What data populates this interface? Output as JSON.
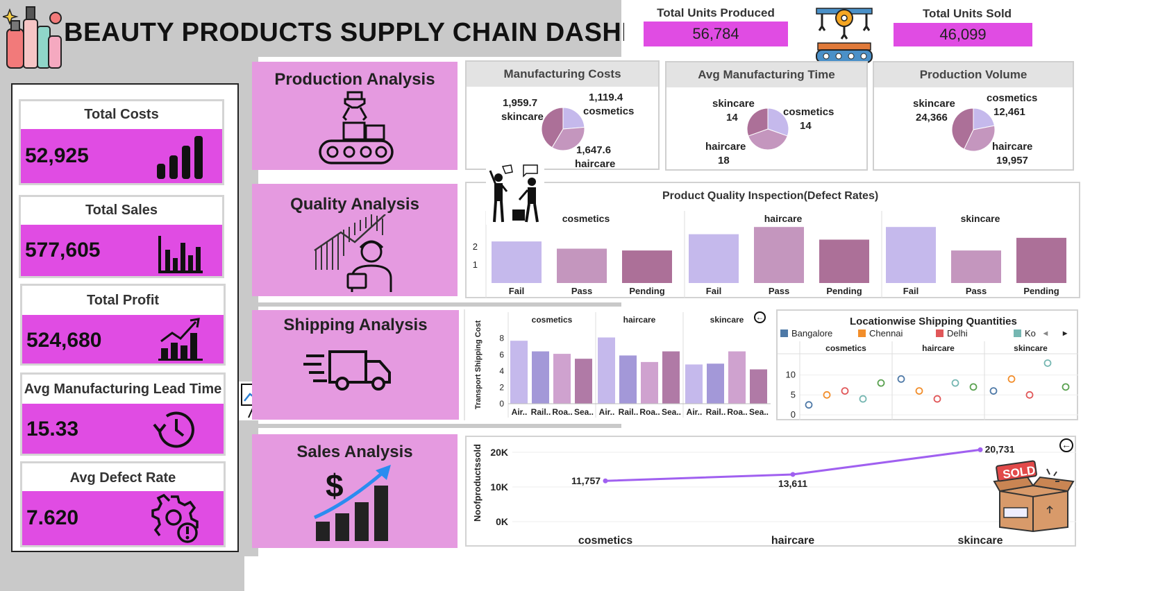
{
  "title": "BEAUTY PRODUCTS SUPPLY CHAIN DASHBOARD",
  "top_kpis": [
    {
      "label": "Total Units Produced",
      "value": "56,784"
    },
    {
      "label": "Total Units Sold",
      "value": "46,099"
    }
  ],
  "side_kpis": [
    {
      "label": "Total Costs",
      "value": "52,925",
      "icon": "bar-chart-icon"
    },
    {
      "label": "Total Sales",
      "value": "577,605",
      "icon": "column-chart-icon"
    },
    {
      "label": "Total Profit",
      "value": "524,680",
      "icon": "growth-chart-icon"
    },
    {
      "label": "Avg Manufacturing Lead Time",
      "value": "15.33",
      "icon": "clock-icon"
    },
    {
      "label": "Avg Defect Rate",
      "value": "7.620",
      "icon": "gear-alert-icon"
    }
  ],
  "sections": {
    "production": "Production Analysis",
    "quality": "Quality Analysis",
    "shipping": "Shipping Analysis",
    "sales": "Sales Analysis"
  },
  "colors": {
    "accent_pink": "#e04ce3",
    "section_lavender": "#e59ae0",
    "pie_light": "#c5b9ec",
    "pie_mid": "#c496be",
    "pie_dark": "#ac7098",
    "line_purple": "#a060f0"
  },
  "chart_data": [
    {
      "type": "pie",
      "title": "Manufacturing Costs",
      "categories": [
        "cosmetics",
        "haircare",
        "skincare"
      ],
      "values": [
        1119.4,
        1647.6,
        1959.7
      ],
      "labels": [
        "1,119.4",
        "1,647.6",
        "1,959.7"
      ]
    },
    {
      "type": "pie",
      "title": "Avg Manufacturing Time",
      "categories": [
        "cosmetics",
        "haircare",
        "skincare"
      ],
      "values": [
        14,
        18,
        14
      ],
      "labels": [
        "14",
        "18",
        "14"
      ]
    },
    {
      "type": "pie",
      "title": "Production Volume",
      "categories": [
        "cosmetics",
        "haircare",
        "skincare"
      ],
      "values": [
        12461,
        19957,
        24366
      ],
      "labels": [
        "12,461",
        "19,957",
        "24,366"
      ]
    },
    {
      "type": "bar",
      "title": "Product Quality Inspection(Defect Rates)",
      "panels": [
        "cosmetics",
        "haircare",
        "skincare"
      ],
      "categories": [
        "Fail",
        "Pass",
        "Pending"
      ],
      "values": [
        [
          2.3,
          1.9,
          1.8
        ],
        [
          2.7,
          3.1,
          2.4
        ],
        [
          3.1,
          1.8,
          2.5
        ]
      ],
      "yticks": [
        1,
        2
      ],
      "ylim": [
        0,
        3.3
      ]
    },
    {
      "type": "bar",
      "title": "",
      "ylabel": "Transport Shipping Cost",
      "panels": [
        "cosmetics",
        "haircare",
        "skincare"
      ],
      "categories": [
        "Air..",
        "Rail..",
        "Roa..",
        "Sea.."
      ],
      "values": [
        [
          7.7,
          6.4,
          6.1,
          5.5
        ],
        [
          8.1,
          5.9,
          5.1,
          6.4
        ],
        [
          4.8,
          4.9,
          6.4,
          4.2
        ]
      ],
      "yticks": [
        0,
        2,
        4,
        6,
        8
      ],
      "ylim": [
        0,
        9.5
      ]
    },
    {
      "type": "scatter",
      "title": "Locationwise Shipping Quantities",
      "legend": [
        {
          "name": "Bangalore",
          "color": "#4e79a7"
        },
        {
          "name": "Chennai",
          "color": "#f28e2b"
        },
        {
          "name": "Delhi",
          "color": "#e15759"
        },
        {
          "name": "Ko",
          "color": "#76b7b2"
        }
      ],
      "panels": [
        "cosmetics",
        "haircare",
        "skincare"
      ],
      "series_colors": [
        "#4e79a7",
        "#f28e2b",
        "#e15759",
        "#76b7b2",
        "#59a14f"
      ],
      "values": [
        [
          2.5,
          5,
          6,
          4,
          8
        ],
        [
          9,
          6,
          4,
          8,
          7
        ],
        [
          6,
          9,
          5,
          13,
          7
        ]
      ],
      "yticks": [
        0,
        5,
        10
      ],
      "ylim": [
        0,
        15
      ]
    },
    {
      "type": "line",
      "title": "",
      "ylabel": "Noofproductssold",
      "categories": [
        "cosmetics",
        "haircare",
        "skincare"
      ],
      "values": [
        11757,
        13611,
        20731
      ],
      "labels": [
        "11,757",
        "13,611",
        "20,731"
      ],
      "yticks": [
        "0K",
        "10K",
        "20K"
      ],
      "ylim": [
        0,
        22000
      ]
    }
  ]
}
